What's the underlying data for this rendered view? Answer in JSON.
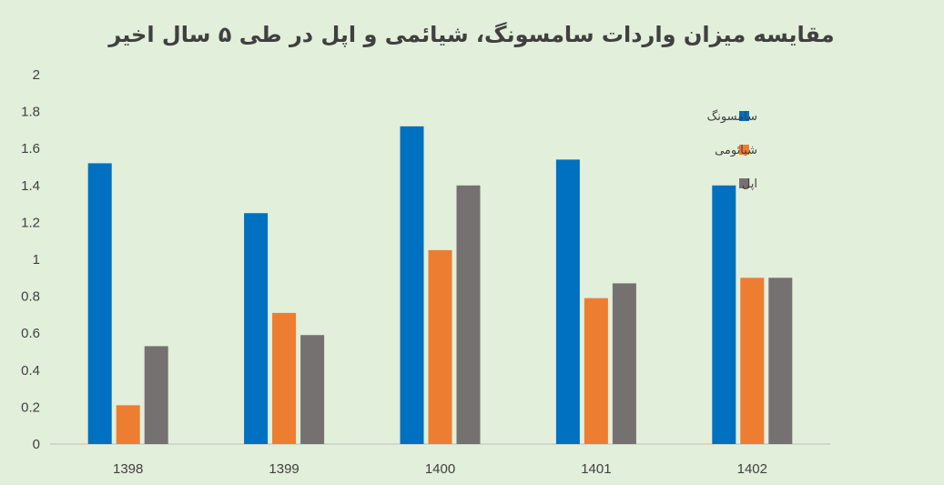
{
  "chart_data": {
    "type": "bar",
    "title": "مقایسه میزان واردات سامسونگ، شیائمی و اپل در طی ۵ سال اخیر",
    "categories": [
      "1398",
      "1399",
      "1400",
      "1401",
      "1402"
    ],
    "series": [
      {
        "name": "سامسونگ",
        "color": "#0070c0",
        "values": [
          1.52,
          1.25,
          1.72,
          1.54,
          1.4
        ]
      },
      {
        "name": "شیائومی",
        "color": "#ed7d31",
        "values": [
          0.21,
          0.71,
          1.05,
          0.79,
          0.9
        ]
      },
      {
        "name": "اپل",
        "color": "#767171",
        "values": [
          0.53,
          0.59,
          1.4,
          0.87,
          0.9
        ]
      }
    ],
    "ylim": [
      0,
      2
    ],
    "yticks": [
      "0",
      "0.2",
      "0.4",
      "0.6",
      "0.8",
      "1",
      "1.2",
      "1.4",
      "1.6",
      "1.8",
      "2"
    ],
    "legend_position": "right",
    "grid": false
  }
}
